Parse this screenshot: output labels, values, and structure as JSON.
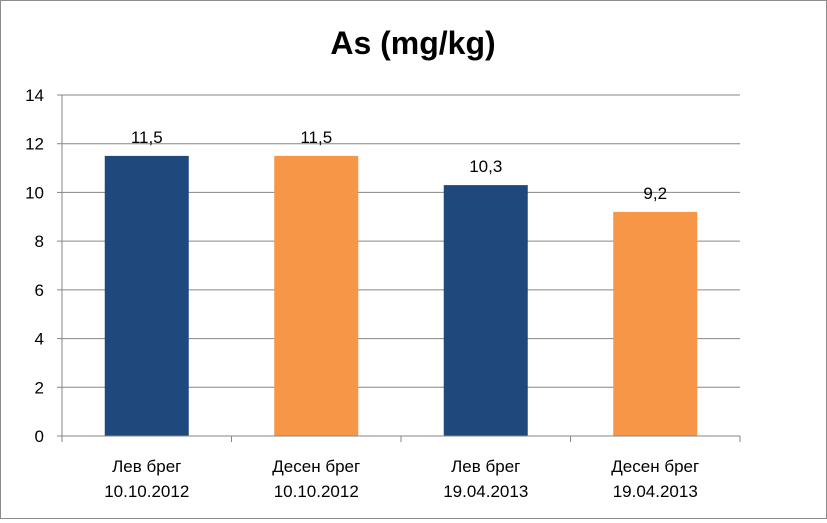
{
  "chart_data": {
    "type": "bar",
    "title": "As (mg/kg)",
    "categories": [
      [
        "Лев брег",
        "10.10.2012"
      ],
      [
        "Десен брег",
        "10.10.2012"
      ],
      [
        "Лев брег",
        "19.04.2013"
      ],
      [
        "Десен брег",
        "19.04.2013"
      ]
    ],
    "values": [
      11.5,
      11.5,
      10.3,
      9.2
    ],
    "data_labels": [
      "11,5",
      "11,5",
      "10,3",
      "9,2"
    ],
    "bar_colors": [
      "#1f497d",
      "#f79646",
      "#1f497d",
      "#f79646"
    ],
    "ylim": [
      0,
      14
    ],
    "yticks": [
      0,
      2,
      4,
      6,
      8,
      10,
      12,
      14
    ],
    "xlabel": "",
    "ylabel": "",
    "grid": true,
    "legend": "none"
  },
  "colors": {
    "gridline": "#868686",
    "axis": "#868686"
  }
}
